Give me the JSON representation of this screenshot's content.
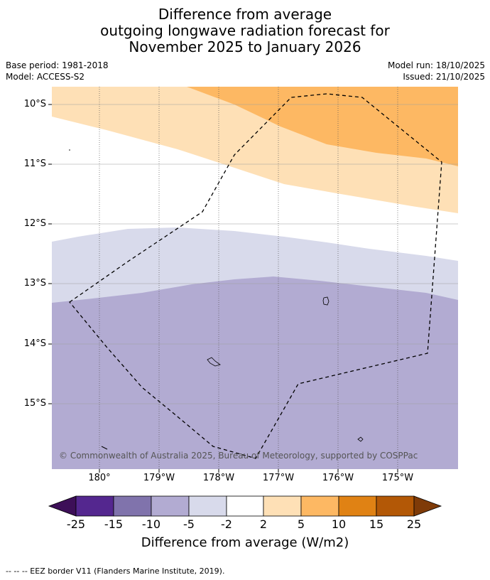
{
  "title": {
    "line1": "Difference from average",
    "line2": "outgoing longwave radiation forecast for",
    "line3": "November 2025 to January 2026"
  },
  "meta": {
    "base_period": "Base period: 1981-2018",
    "model": "Model: ACCESS-S2",
    "model_run": "Model run: 18/10/2025",
    "issued": "Issued: 21/10/2025"
  },
  "map": {
    "lat_labels": [
      "10°S",
      "11°S",
      "12°S",
      "13°S",
      "14°S",
      "15°S"
    ],
    "lon_labels": [
      "180°",
      "179°W",
      "178°W",
      "177°W",
      "176°W",
      "175°W"
    ],
    "copyright": "© Commonwealth of Australia 2025, Bureau of Meteorology, supported by COSPPac"
  },
  "colorbar": {
    "labels": [
      "-25",
      "-15",
      "-10",
      "-5",
      "-2",
      "2",
      "5",
      "10",
      "15",
      "25"
    ],
    "colors": [
      "#3d0f58",
      "#54278f",
      "#8073ac",
      "#b2abd2",
      "#d8daeb",
      "#ffffff",
      "#fee0b6",
      "#fdb863",
      "#e08214",
      "#b35806",
      "#7f3b08"
    ],
    "title": "Difference from average (W/m2)"
  },
  "footnote": "--  --  -- EEZ border V11 (Flanders Marine Institute, 2019)."
}
